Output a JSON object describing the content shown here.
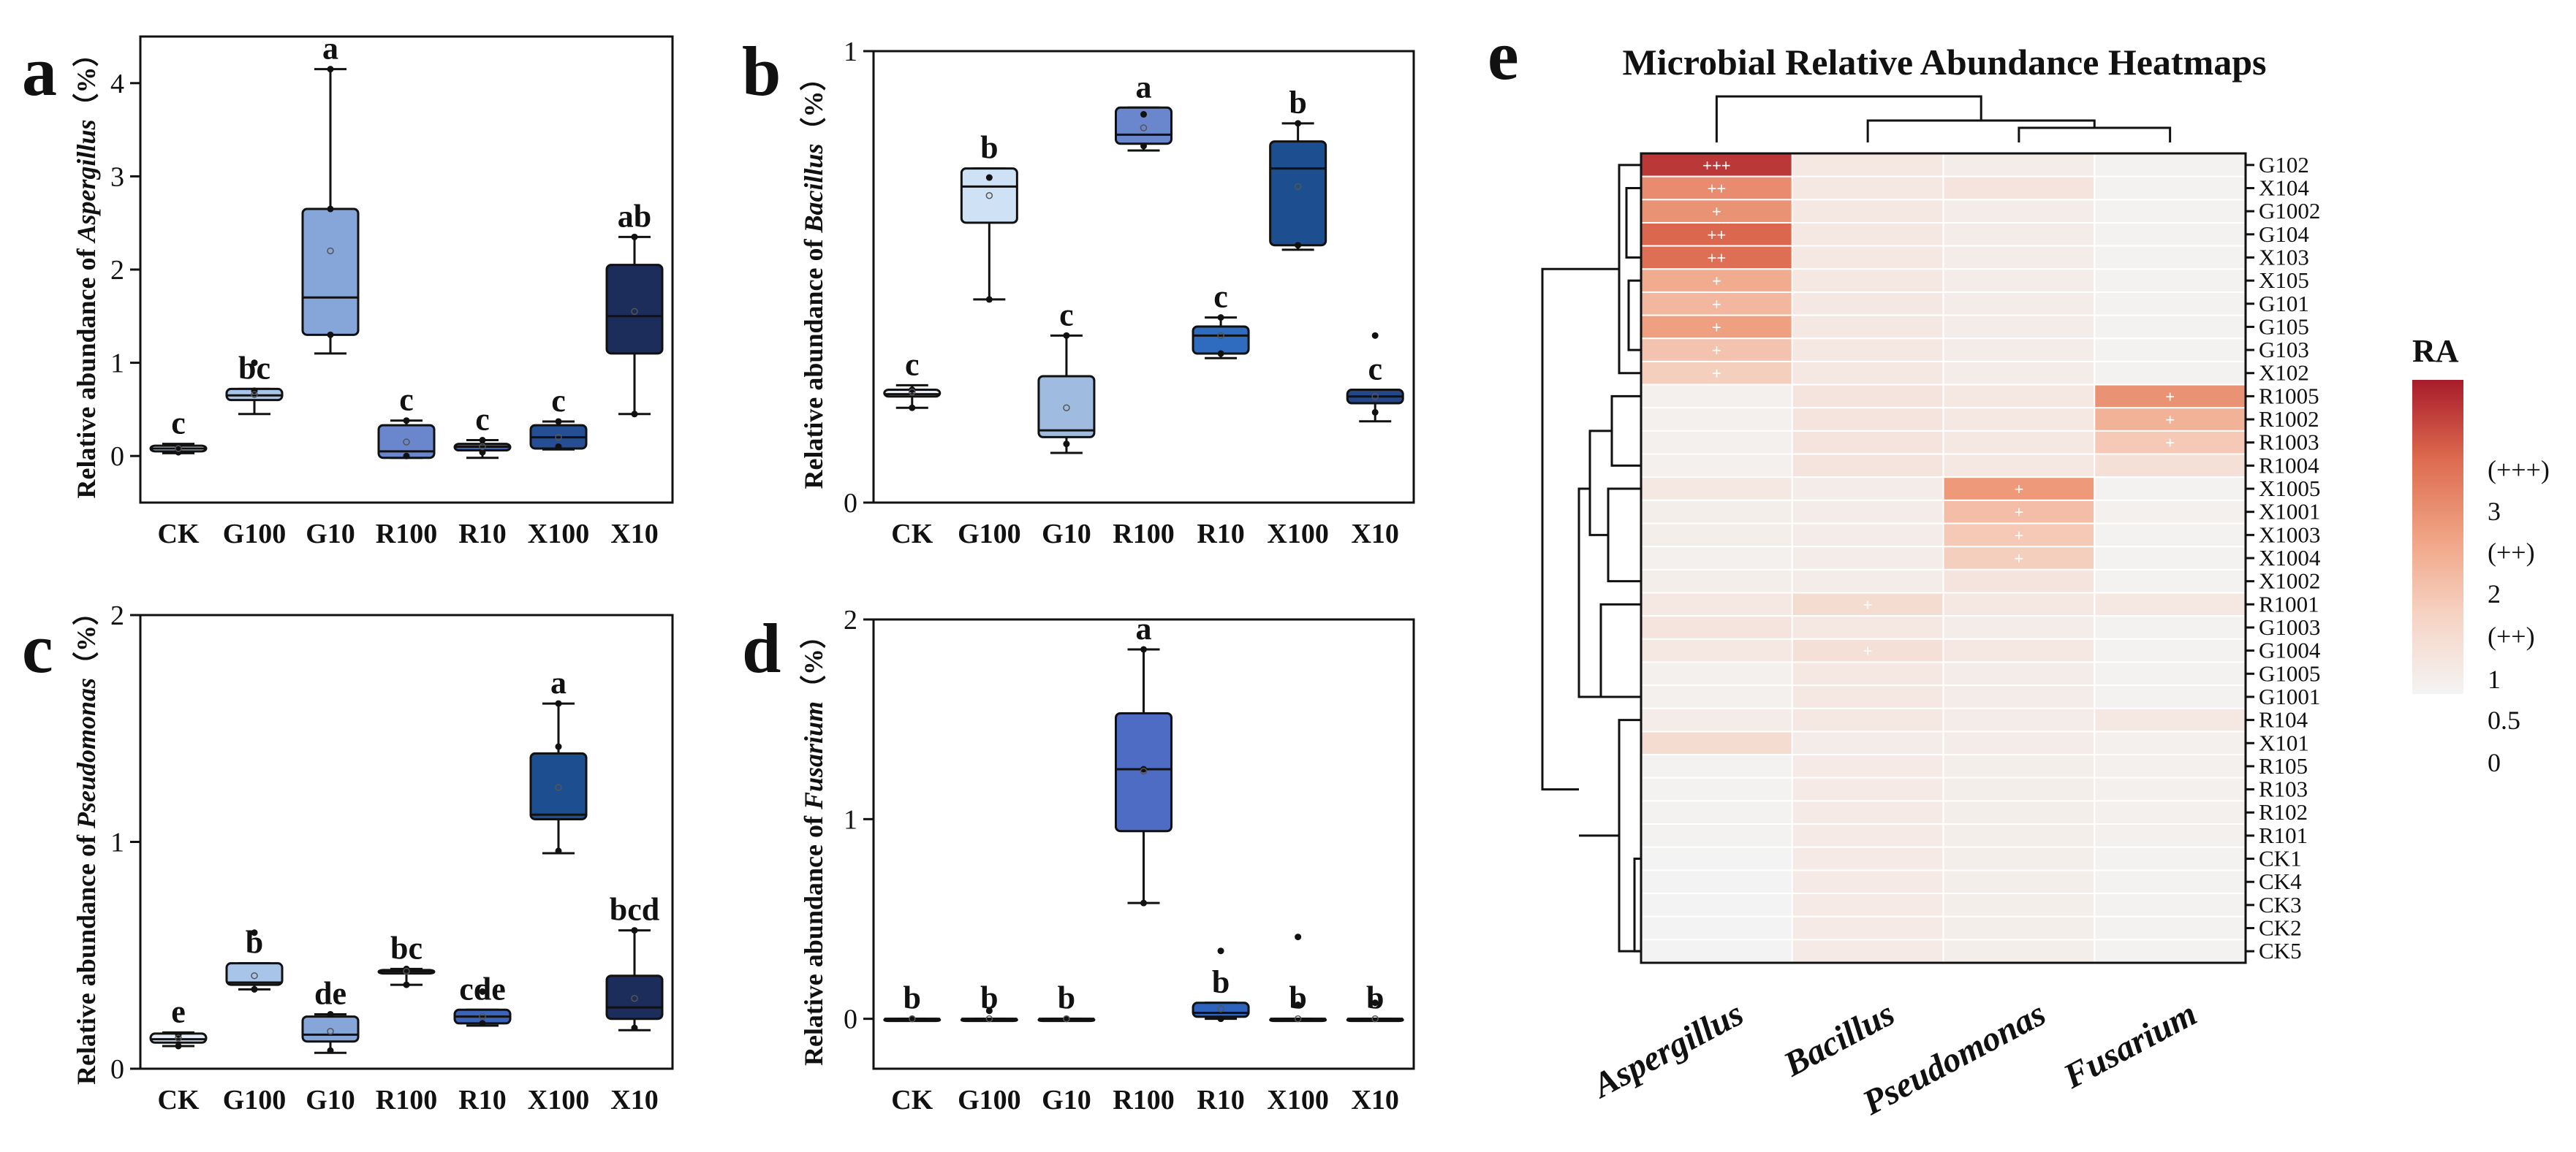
{
  "chart_data": [
    {
      "id": "a",
      "type": "box",
      "panel_label": "a",
      "ylabel_prefix": "Relative abundance of ",
      "ylabel_taxon": "Aspergillus",
      "ylabel_suffix": "（%）",
      "categories": [
        "CK",
        "G100",
        "G10",
        "R100",
        "R10",
        "X100",
        "X10"
      ],
      "ylim": [
        -0.5,
        4.5
      ],
      "yticks": [
        0,
        1,
        2,
        3,
        4
      ],
      "boxes": [
        {
          "min": 0.03,
          "q1": 0.05,
          "median": 0.08,
          "q3": 0.11,
          "max": 0.13,
          "mean": 0.08,
          "points": [
            0.04,
            0.07,
            0.1
          ]
        },
        {
          "min": 0.45,
          "q1": 0.6,
          "median": 0.65,
          "q3": 0.72,
          "max": 0.72,
          "mean": 0.66,
          "points": [
            1.0,
            0.7
          ]
        },
        {
          "min": 1.1,
          "q1": 1.3,
          "median": 1.7,
          "q3": 2.65,
          "max": 4.15,
          "mean": 2.2,
          "points": [
            4.15,
            2.65,
            1.3
          ]
        },
        {
          "min": -0.02,
          "q1": -0.02,
          "median": 0.05,
          "q3": 0.33,
          "max": 0.38,
          "mean": 0.15,
          "points": [
            0.38,
            0.0
          ]
        },
        {
          "min": -0.02,
          "q1": 0.06,
          "median": 0.1,
          "q3": 0.13,
          "max": 0.17,
          "mean": 0.1,
          "points": [
            0.17,
            0.04
          ]
        },
        {
          "min": 0.07,
          "q1": 0.08,
          "median": 0.2,
          "q3": 0.33,
          "max": 0.37,
          "mean": 0.2,
          "points": [
            0.37,
            0.1
          ]
        },
        {
          "min": 0.45,
          "q1": 1.1,
          "median": 1.5,
          "q3": 2.05,
          "max": 2.35,
          "mean": 1.55,
          "points": [
            2.35,
            0.45
          ]
        }
      ],
      "colors": [
        "#dbe7f5",
        "#a8c4e8",
        "#86a6d9",
        "#6a86cc",
        "#3b63b8",
        "#264e94",
        "#1c2d5c"
      ],
      "letters": [
        "c",
        "bc",
        "a",
        "c",
        "c",
        "c",
        "ab"
      ]
    },
    {
      "id": "b",
      "type": "box",
      "panel_label": "b",
      "ylabel_prefix": "Relative abundance of ",
      "ylabel_taxon": "Bacillus",
      "ylabel_suffix": "（%）",
      "categories": [
        "CK",
        "G100",
        "G10",
        "R100",
        "R10",
        "X100",
        "X10"
      ],
      "ylim": [
        0,
        1
      ],
      "yticks": [
        0,
        1
      ],
      "boxes": [
        {
          "min": 0.21,
          "q1": 0.235,
          "median": 0.24,
          "q3": 0.25,
          "max": 0.26,
          "mean": 0.245,
          "points": [
            0.21,
            0.25
          ]
        },
        {
          "min": 0.45,
          "q1": 0.62,
          "median": 0.7,
          "q3": 0.74,
          "max": 0.74,
          "mean": 0.68,
          "points": [
            0.72,
            0.45
          ]
        },
        {
          "min": 0.11,
          "q1": 0.145,
          "median": 0.16,
          "q3": 0.28,
          "max": 0.37,
          "mean": 0.21,
          "points": [
            0.37,
            0.13
          ]
        },
        {
          "min": 0.78,
          "q1": 0.795,
          "median": 0.815,
          "q3": 0.875,
          "max": 0.875,
          "mean": 0.83,
          "points": [
            0.86,
            0.79
          ]
        },
        {
          "min": 0.32,
          "q1": 0.33,
          "median": 0.37,
          "q3": 0.39,
          "max": 0.41,
          "mean": 0.37,
          "points": [
            0.41,
            0.33
          ]
        },
        {
          "min": 0.56,
          "q1": 0.57,
          "median": 0.74,
          "q3": 0.8,
          "max": 0.84,
          "mean": 0.7,
          "points": [
            0.84,
            0.57
          ]
        },
        {
          "min": 0.18,
          "q1": 0.22,
          "median": 0.235,
          "q3": 0.25,
          "max": 0.25,
          "mean": 0.235,
          "points": [
            0.37,
            0.2
          ]
        }
      ],
      "colors": [
        "#e5ecf5",
        "#cfe2f5",
        "#9fbbe0",
        "#6a86cc",
        "#2f6cbf",
        "#1d4e8f",
        "#24478a"
      ],
      "letters": [
        "c",
        "b",
        "c",
        "a",
        "c",
        "b",
        "c"
      ]
    },
    {
      "id": "c",
      "type": "box",
      "panel_label": "c",
      "ylabel_prefix": "Relative abundance of ",
      "ylabel_taxon": "Pseudomonas",
      "ylabel_suffix": "（%）",
      "categories": [
        "CK",
        "G100",
        "G10",
        "R100",
        "R10",
        "X100",
        "X10"
      ],
      "ylim": [
        0,
        2
      ],
      "yticks": [
        0,
        1,
        2
      ],
      "boxes": [
        {
          "min": 0.1,
          "q1": 0.115,
          "median": 0.13,
          "q3": 0.155,
          "max": 0.16,
          "mean": 0.135,
          "points": [
            0.1,
            0.15
          ]
        },
        {
          "min": 0.35,
          "q1": 0.37,
          "median": 0.38,
          "q3": 0.465,
          "max": 0.465,
          "mean": 0.41,
          "points": [
            0.6,
            0.35
          ]
        },
        {
          "min": 0.07,
          "q1": 0.12,
          "median": 0.15,
          "q3": 0.23,
          "max": 0.24,
          "mean": 0.165,
          "points": [
            0.24,
            0.08
          ]
        },
        {
          "min": 0.37,
          "q1": 0.42,
          "median": 0.43,
          "q3": 0.435,
          "max": 0.44,
          "mean": 0.43,
          "points": [
            0.44,
            0.37
          ]
        },
        {
          "min": 0.19,
          "q1": 0.2,
          "median": 0.23,
          "q3": 0.26,
          "max": 0.26,
          "mean": 0.23,
          "points": [
            0.34,
            0.2
          ]
        },
        {
          "min": 0.95,
          "q1": 1.1,
          "median": 1.12,
          "q3": 1.39,
          "max": 1.61,
          "mean": 1.24,
          "points": [
            1.61,
            1.42,
            0.96
          ]
        },
        {
          "min": 0.17,
          "q1": 0.22,
          "median": 0.27,
          "q3": 0.41,
          "max": 0.61,
          "mean": 0.31,
          "points": [
            0.61,
            0.18
          ]
        }
      ],
      "colors": [
        "#e5ecf5",
        "#a8c4e8",
        "#86a6d9",
        "#6a86cc",
        "#3b63b8",
        "#1d4e8f",
        "#1c2d5c"
      ],
      "letters": [
        "e",
        "b",
        "de",
        "bc",
        "cde",
        "a",
        "bcd"
      ]
    },
    {
      "id": "d",
      "type": "box",
      "panel_label": "d",
      "ylabel_prefix": "Relative abundance of ",
      "ylabel_taxon": "Fusarium",
      "ylabel_suffix": "（%）",
      "categories": [
        "CK",
        "G100",
        "G10",
        "R100",
        "R10",
        "X100",
        "X10"
      ],
      "ylim": [
        -0.25,
        2
      ],
      "yticks": [
        0,
        1,
        2
      ],
      "boxes": [
        {
          "min": 0.0,
          "q1": 0.0,
          "median": 0.0,
          "q3": 0.0,
          "max": 0.0,
          "mean": 0.0,
          "points": [
            0.0
          ]
        },
        {
          "min": 0.0,
          "q1": 0.0,
          "median": 0.0,
          "q3": 0.0,
          "max": 0.0,
          "mean": 0.0,
          "points": [
            0.04
          ]
        },
        {
          "min": 0.0,
          "q1": 0.0,
          "median": 0.0,
          "q3": 0.0,
          "max": 0.0,
          "mean": 0.0,
          "points": [
            0.0
          ]
        },
        {
          "min": 0.58,
          "q1": 0.94,
          "median": 1.25,
          "q3": 1.53,
          "max": 1.85,
          "mean": 1.24,
          "points": [
            1.85,
            1.25,
            0.58
          ]
        },
        {
          "min": 0.0,
          "q1": 0.01,
          "median": 0.03,
          "q3": 0.08,
          "max": 0.08,
          "mean": 0.05,
          "points": [
            0.34,
            0.0
          ]
        },
        {
          "min": 0.0,
          "q1": 0.0,
          "median": 0.0,
          "q3": 0.0,
          "max": 0.0,
          "mean": 0.0,
          "points": [
            0.41,
            0.07
          ]
        },
        {
          "min": 0.0,
          "q1": 0.0,
          "median": 0.0,
          "q3": 0.0,
          "max": 0.0,
          "mean": 0.0,
          "points": [
            0.08
          ]
        }
      ],
      "colors": [
        "#e5ecf5",
        "#cfe2f5",
        "#9fbbe0",
        "#4f6cc4",
        "#2d63bd",
        "#1d4e8f",
        "#24478a"
      ],
      "letters": [
        "b",
        "b",
        "b",
        "a",
        "b",
        "b",
        "b"
      ]
    },
    {
      "id": "e",
      "type": "heatmap",
      "panel_label": "e",
      "title": "Microbial Relative Abundance Heatmaps",
      "columns": [
        "Aspergillus",
        "Bacillus",
        "Pseudomonas",
        "Fusarium"
      ],
      "rows": [
        "G102",
        "X104",
        "G1002",
        "G104",
        "X103",
        "X105",
        "G101",
        "G105",
        "G103",
        "X102",
        "R1005",
        "R1002",
        "R1003",
        "R1004",
        "X1005",
        "X1001",
        "X1003",
        "X1004",
        "X1002",
        "R1001",
        "G1003",
        "G1004",
        "G1005",
        "G1001",
        "R104",
        "X101",
        "R105",
        "R103",
        "R102",
        "R101",
        "CK1",
        "CK4",
        "CK3",
        "CK2",
        "CK5"
      ],
      "values": [
        [
          4.0,
          1.3,
          1.2,
          1.05
        ],
        [
          3.0,
          1.3,
          1.4,
          1.05
        ],
        [
          2.9,
          1.3,
          1.2,
          1.05
        ],
        [
          3.5,
          1.3,
          1.2,
          1.05
        ],
        [
          3.4,
          1.3,
          1.2,
          1.05
        ],
        [
          2.5,
          1.3,
          1.2,
          1.05
        ],
        [
          2.3,
          1.3,
          1.2,
          1.05
        ],
        [
          2.7,
          1.3,
          1.2,
          1.05
        ],
        [
          2.1,
          1.3,
          1.2,
          1.05
        ],
        [
          1.9,
          1.3,
          1.2,
          1.05
        ],
        [
          1.1,
          1.4,
          1.3,
          2.9
        ],
        [
          1.1,
          1.4,
          1.3,
          2.4
        ],
        [
          1.1,
          1.4,
          1.3,
          2.0
        ],
        [
          1.1,
          1.4,
          1.3,
          1.5
        ],
        [
          1.3,
          1.2,
          2.8,
          1.05
        ],
        [
          1.15,
          1.2,
          2.2,
          1.1
        ],
        [
          1.15,
          1.2,
          2.0,
          1.05
        ],
        [
          1.1,
          1.2,
          1.9,
          1.05
        ],
        [
          1.15,
          1.2,
          1.4,
          1.05
        ],
        [
          1.3,
          1.6,
          1.3,
          1.3
        ],
        [
          1.4,
          1.3,
          1.2,
          1.05
        ],
        [
          1.3,
          1.5,
          1.3,
          1.05
        ],
        [
          1.1,
          1.3,
          1.2,
          1.05
        ],
        [
          1.1,
          1.3,
          1.2,
          1.05
        ],
        [
          1.2,
          1.3,
          1.2,
          1.3
        ],
        [
          1.6,
          1.2,
          1.2,
          1.1
        ],
        [
          1.05,
          1.25,
          1.15,
          1.1
        ],
        [
          1.05,
          1.25,
          1.15,
          1.1
        ],
        [
          1.05,
          1.25,
          1.15,
          1.1
        ],
        [
          1.05,
          1.25,
          1.15,
          1.1
        ],
        [
          1.02,
          1.25,
          1.15,
          1.05
        ],
        [
          1.02,
          1.25,
          1.15,
          1.05
        ],
        [
          1.02,
          1.25,
          1.15,
          1.05
        ],
        [
          1.02,
          1.25,
          1.15,
          1.05
        ],
        [
          1.02,
          1.25,
          1.15,
          1.05
        ]
      ],
      "marks": [
        [
          "+++",
          "",
          "",
          ""
        ],
        [
          "++",
          "",
          "",
          ""
        ],
        [
          "+",
          "",
          "",
          ""
        ],
        [
          "++",
          "",
          "",
          ""
        ],
        [
          "++",
          "",
          "",
          ""
        ],
        [
          "+",
          "",
          "",
          ""
        ],
        [
          "+",
          "",
          "",
          ""
        ],
        [
          "+",
          "",
          "",
          ""
        ],
        [
          "+",
          "",
          "",
          ""
        ],
        [
          "+",
          "",
          "",
          ""
        ],
        [
          "",
          "",
          "",
          "+"
        ],
        [
          "",
          "",
          "",
          "+"
        ],
        [
          "",
          "",
          "",
          "+"
        ],
        [
          "",
          "",
          "",
          ""
        ],
        [
          "",
          "",
          "+",
          ""
        ],
        [
          "",
          "",
          "+",
          ""
        ],
        [
          "",
          "",
          "+",
          ""
        ],
        [
          "",
          "",
          "+",
          ""
        ],
        [
          "",
          "",
          "",
          ""
        ],
        [
          "",
          "+",
          "",
          ""
        ],
        [
          "",
          "",
          "",
          ""
        ],
        [
          "",
          "+",
          "",
          ""
        ],
        [
          "",
          "",
          "",
          ""
        ],
        [
          "",
          "",
          "",
          ""
        ],
        [
          "",
          "",
          "",
          ""
        ],
        [
          "",
          "",
          "",
          ""
        ],
        [
          "",
          "",
          "",
          ""
        ],
        [
          "",
          "",
          "",
          ""
        ],
        [
          "",
          "",
          "",
          ""
        ],
        [
          "",
          "",
          "",
          ""
        ],
        [
          "",
          "",
          "",
          ""
        ],
        [
          "",
          "",
          "",
          ""
        ],
        [
          "",
          "",
          "",
          ""
        ],
        [
          "",
          "",
          "",
          ""
        ],
        [
          "",
          "",
          "",
          ""
        ]
      ],
      "colorbar": {
        "title": "RA",
        "range": [
          1,
          4.3
        ],
        "labels": [
          "(+++)",
          "3",
          "(++)",
          "2",
          "(++)",
          "1",
          "0.5",
          "0"
        ],
        "stops": [
          "#f4f4f4",
          "#f6d3c4",
          "#f0a384",
          "#dd6a4f",
          "#a81b2b"
        ]
      }
    }
  ]
}
